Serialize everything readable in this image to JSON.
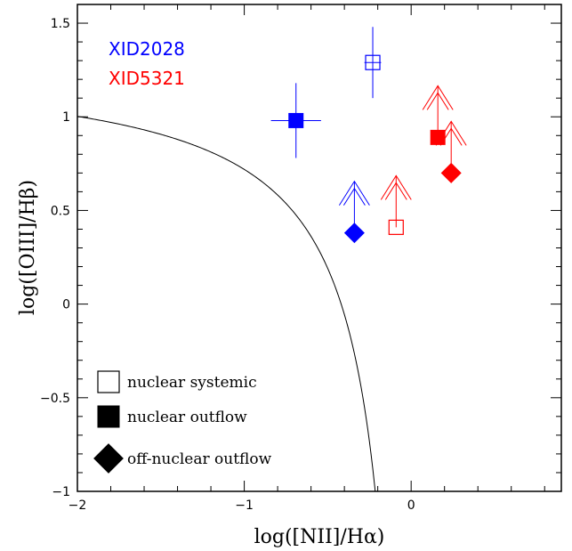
{
  "chart_data": {
    "type": "scatter",
    "xlabel": "log([NII]/Hα)",
    "ylabel": "log([OIII]/Hβ)",
    "xlim": [
      -2,
      0.9
    ],
    "ylim": [
      -1,
      1.6
    ],
    "x_ticks": [
      "−2",
      "−1",
      "0"
    ],
    "y_ticks": [
      "−1",
      "−0.5",
      "0",
      "0.5",
      "1",
      "1.5"
    ],
    "x_tick_values": [
      -2,
      -1,
      0
    ],
    "y_tick_values": [
      -1,
      -0.5,
      0,
      0.5,
      1,
      1.5
    ],
    "grid": false,
    "targets": [
      {
        "name": "XID2028",
        "color": "#0000ff"
      },
      {
        "name": "XID5321",
        "color": "#ff0000"
      }
    ],
    "points": [
      {
        "target": "XID2028",
        "type": "nuclear systemic",
        "x": -0.23,
        "y": 1.29,
        "xerr": 0.05,
        "yerr": 0.19,
        "marker": "open-square",
        "lower_limit": false
      },
      {
        "target": "XID2028",
        "type": "nuclear outflow",
        "x": -0.69,
        "y": 0.98,
        "xerr": 0.15,
        "yerr": 0.2,
        "marker": "filled-square",
        "lower_limit": false
      },
      {
        "target": "XID2028",
        "type": "off-nuclear outflow",
        "x": -0.34,
        "y": 0.38,
        "marker": "filled-diamond",
        "lower_limit": true
      },
      {
        "target": "XID5321",
        "type": "nuclear systemic",
        "x": -0.09,
        "y": 0.41,
        "marker": "open-square",
        "lower_limit": true
      },
      {
        "target": "XID5321",
        "type": "nuclear outflow",
        "x": 0.16,
        "y": 0.89,
        "marker": "filled-square",
        "lower_limit": true
      },
      {
        "target": "XID5321",
        "type": "off-nuclear outflow",
        "x": 0.24,
        "y": 0.7,
        "marker": "filled-diamond",
        "lower_limit": true
      }
    ],
    "curve": {
      "description": "demarcation line",
      "equation": "0.61/(x-0.05)+1.3",
      "x_range": [
        -2,
        0.02
      ]
    },
    "legend": {
      "placement": "bottom-left",
      "entries": [
        {
          "marker": "open-square",
          "label": "nuclear systemic"
        },
        {
          "marker": "filled-square",
          "label": "nuclear outflow"
        },
        {
          "marker": "filled-diamond",
          "label": "off-nuclear outflow"
        }
      ]
    }
  }
}
